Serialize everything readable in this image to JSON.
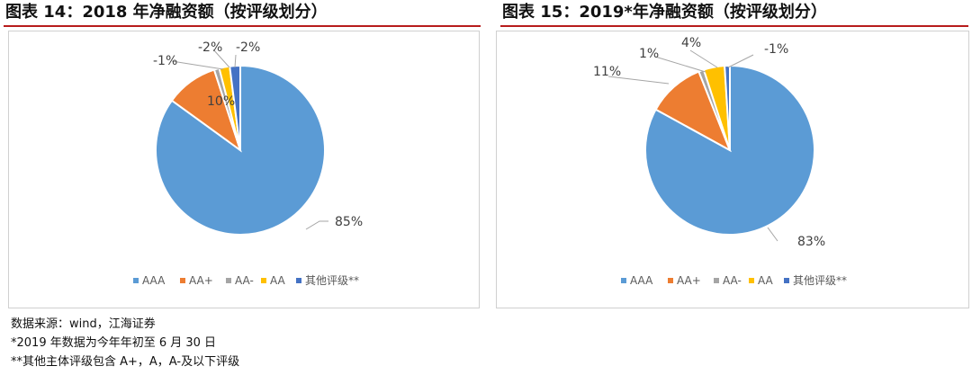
{
  "titles": {
    "left": "图表 14：2018 年净融资额（按评级划分）",
    "right": "图表 15：2019*年净融资额（按评级划分）"
  },
  "colors": {
    "AAA": "#5b9bd5",
    "AA+": "#ed7d31",
    "AA-": "#a5a5a5",
    "AA": "#ffc000",
    "其他评级**": "#4472c4"
  },
  "chart_data": [
    {
      "type": "pie",
      "title": "图表 14：2018 年净融资额（按评级划分）",
      "legend_position": "bottom",
      "slices": [
        {
          "label": "AAA",
          "value": 85,
          "data_label": "85%"
        },
        {
          "label": "AA+",
          "value": 10,
          "data_label": "10%"
        },
        {
          "label": "AA-",
          "value": -1,
          "data_label": "-1%"
        },
        {
          "label": "AA",
          "value": -2,
          "data_label": "-2%"
        },
        {
          "label": "其他评级**",
          "value": -2,
          "data_label": "-2%"
        }
      ]
    },
    {
      "type": "pie",
      "title": "图表 15：2019*年净融资额（按评级划分）",
      "legend_position": "bottom",
      "slices": [
        {
          "label": "AAA",
          "value": 83,
          "data_label": "83%"
        },
        {
          "label": "AA+",
          "value": 11,
          "data_label": "11%"
        },
        {
          "label": "AA-",
          "value": 1,
          "data_label": "1%"
        },
        {
          "label": "AA",
          "value": 4,
          "data_label": "4%"
        },
        {
          "label": "其他评级**",
          "value": -1,
          "data_label": "-1%"
        }
      ]
    }
  ],
  "notes": {
    "source": "数据来源：wind，江海证券",
    "note1": "*2019 年数据为今年年初至 6 月 30 日",
    "note2": "**其他主体评级包含 A+，A，A-及以下评级"
  }
}
